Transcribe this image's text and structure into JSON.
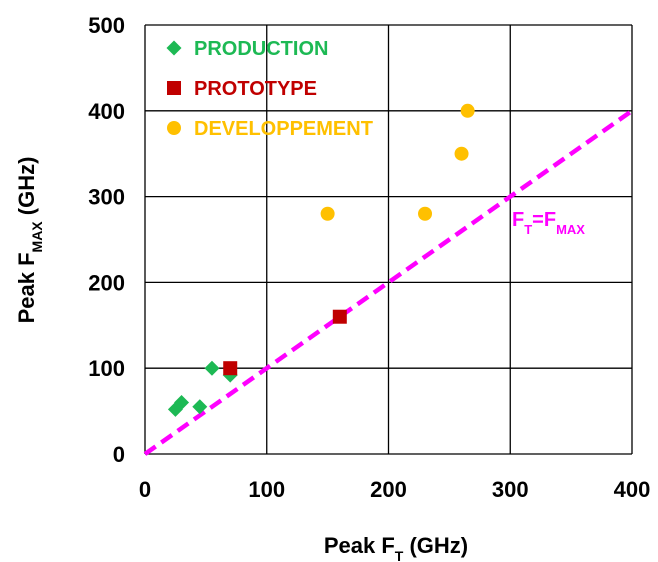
{
  "chart_data": {
    "type": "scatter",
    "x_axis": {
      "label": "Peak F",
      "label_sub": "T",
      "label_suffix": " (GHz)",
      "range": [
        0,
        400
      ],
      "ticks": [
        "0",
        "100",
        "200",
        "300",
        "400"
      ]
    },
    "y_axis": {
      "label": "Peak F",
      "label_sub": "MAX",
      "label_suffix": " (GHz)",
      "range": [
        0,
        500
      ],
      "ticks": [
        "0",
        "100",
        "200",
        "300",
        "400",
        "500"
      ]
    },
    "grid": true,
    "legend_position": "top-left",
    "series": [
      {
        "name": "PRODUCTION",
        "marker": "diamond",
        "color": "#1DB954",
        "points": [
          [
            25,
            52
          ],
          [
            30,
            60
          ],
          [
            45,
            55
          ],
          [
            55,
            100
          ],
          [
            70,
            92
          ]
        ]
      },
      {
        "name": "PROTOTYPE",
        "marker": "square",
        "color": "#C00000",
        "points": [
          [
            70,
            100
          ],
          [
            160,
            160
          ]
        ]
      },
      {
        "name": "DEVELOPPEMENT",
        "marker": "circle",
        "color": "#FFC000",
        "points": [
          [
            150,
            280
          ],
          [
            230,
            280
          ],
          [
            260,
            350
          ],
          [
            265,
            400
          ]
        ]
      }
    ],
    "reference_line": {
      "from": [
        0,
        0
      ],
      "to": [
        400,
        400
      ],
      "color": "#FF00FF",
      "style": "dashed"
    },
    "annotation": {
      "main": "F",
      "sub1": "T",
      "eq": "=F",
      "sub2": "MAX",
      "color": "#FF00FF"
    }
  }
}
